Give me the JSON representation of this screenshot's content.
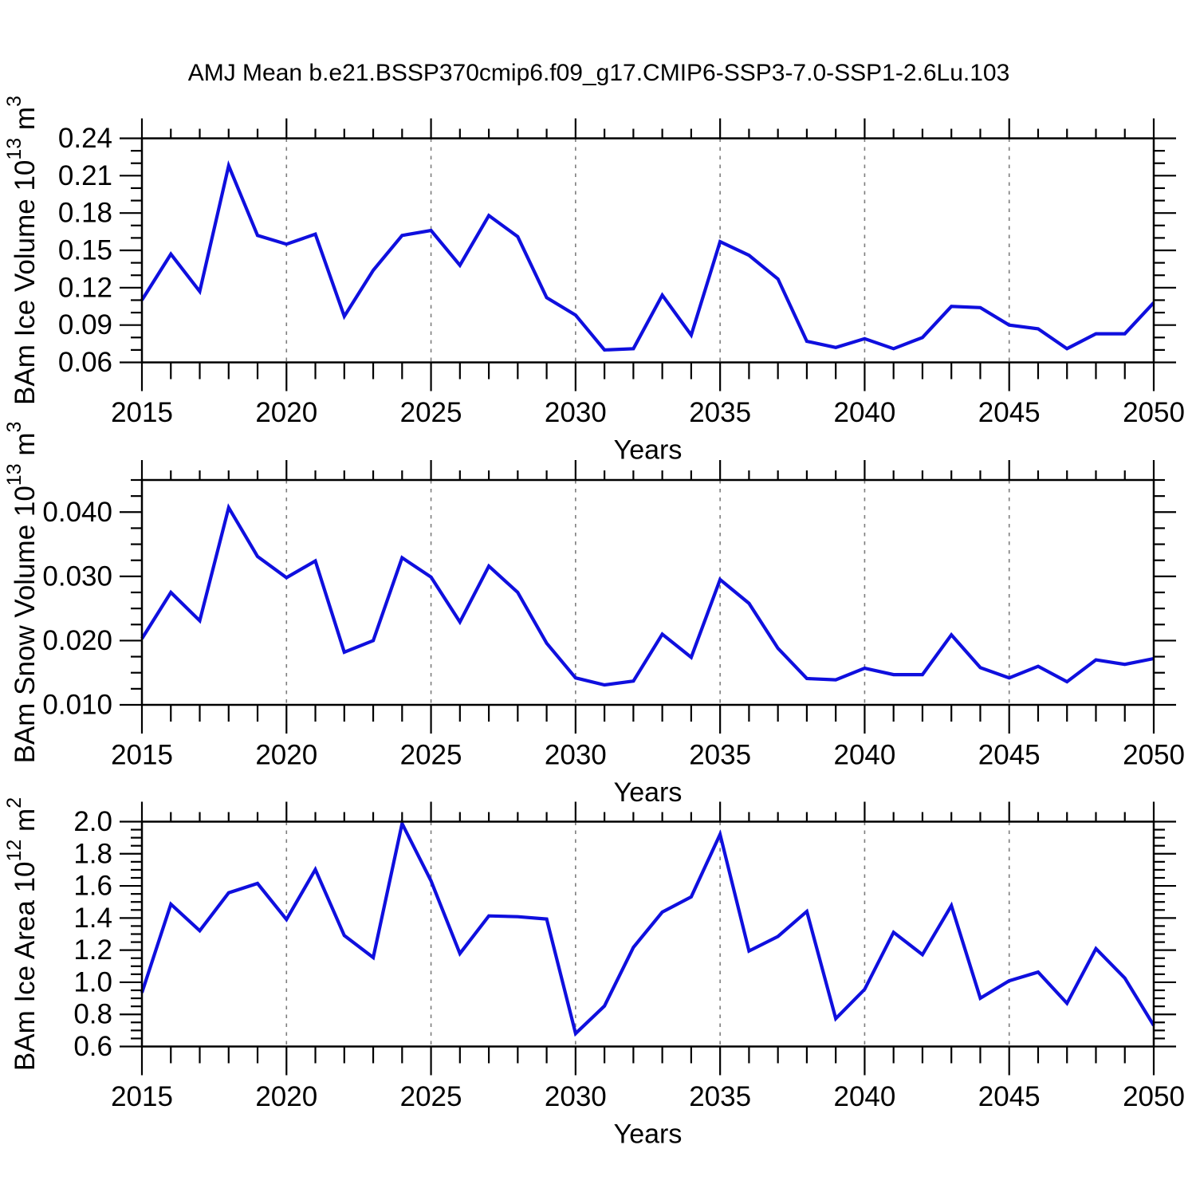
{
  "title": "AMJ Mean b.e21.BSSP370cmip6.f09_g17.CMIP6-SSP3-7.0-SSP1-2.6Lu.103",
  "colors": {
    "series_line": "#0F0FDE",
    "frame": "#000000",
    "gridline": "#7d7d7d",
    "text": "#000000",
    "background": "#ffffff"
  },
  "x_axis": {
    "label": "Years",
    "min": 2015,
    "max": 2050,
    "tick_step_major": 5,
    "tick_step_minor": 1,
    "major_tick_labels": [
      "2015",
      "2020",
      "2025",
      "2030",
      "2035",
      "2040",
      "2045",
      "2050"
    ],
    "gridline_years": [
      2020,
      2025,
      2030,
      2035,
      2040,
      2045
    ]
  },
  "chart_data": [
    {
      "type": "line",
      "name": "ice-volume",
      "ylabel_plain": "BAm Ice Volume 10^13 m^3",
      "ylabel_rich": [
        {
          "t": "BAm Ice Volume 10"
        },
        {
          "t": "13",
          "sup": true
        },
        {
          "t": " m"
        },
        {
          "t": "3",
          "sup": true
        }
      ],
      "xlabel": "Years",
      "y_min": 0.06,
      "y_max": 0.24,
      "y_tick_major": 0.03,
      "y_tick_minor": 0.01,
      "y_tick_decimals": 2,
      "y_tick_labels": [
        "0.06",
        "0.09",
        "0.12",
        "0.15",
        "0.18",
        "0.21",
        "0.24"
      ],
      "x": [
        2015,
        2016,
        2017,
        2018,
        2019,
        2020,
        2021,
        2022,
        2023,
        2024,
        2025,
        2026,
        2027,
        2028,
        2029,
        2030,
        2031,
        2032,
        2033,
        2034,
        2035,
        2036,
        2037,
        2038,
        2039,
        2040,
        2041,
        2042,
        2043,
        2044,
        2045,
        2046,
        2047,
        2048,
        2049,
        2050
      ],
      "values": [
        0.11,
        0.147,
        0.117,
        0.218,
        0.162,
        0.155,
        0.163,
        0.097,
        0.134,
        0.162,
        0.166,
        0.138,
        0.178,
        0.161,
        0.112,
        0.098,
        0.07,
        0.071,
        0.114,
        0.082,
        0.157,
        0.146,
        0.127,
        0.077,
        0.072,
        0.079,
        0.071,
        0.08,
        0.105,
        0.104,
        0.09,
        0.087,
        0.071,
        0.083,
        0.083,
        0.108
      ]
    },
    {
      "type": "line",
      "name": "snow-volume",
      "ylabel_plain": "BAm Snow Volume 10^13 m^3",
      "ylabel_rich": [
        {
          "t": "BAm Snow Volume 10"
        },
        {
          "t": "13",
          "sup": true
        },
        {
          "t": " m"
        },
        {
          "t": "3",
          "sup": true
        }
      ],
      "xlabel": "Years",
      "y_min": 0.01,
      "y_max": 0.045,
      "y_tick_major": 0.01,
      "y_tick_minor": 0.0025,
      "y_tick_decimals": 3,
      "y_tick_labels": [
        "0.010",
        "0.020",
        "0.030",
        "0.040"
      ],
      "x": [
        2015,
        2016,
        2017,
        2018,
        2019,
        2020,
        2021,
        2022,
        2023,
        2024,
        2025,
        2026,
        2027,
        2028,
        2029,
        2030,
        2031,
        2032,
        2033,
        2034,
        2035,
        2036,
        2037,
        2038,
        2039,
        2040,
        2041,
        2042,
        2043,
        2044,
        2045,
        2046,
        2047,
        2048,
        2049,
        2050
      ],
      "values": [
        0.0203,
        0.0275,
        0.0231,
        0.0407,
        0.0331,
        0.0298,
        0.0324,
        0.0182,
        0.02,
        0.0329,
        0.0299,
        0.0229,
        0.0316,
        0.0275,
        0.0196,
        0.0142,
        0.0131,
        0.0137,
        0.021,
        0.0174,
        0.0295,
        0.0258,
        0.0188,
        0.0141,
        0.0139,
        0.0157,
        0.0147,
        0.0147,
        0.0209,
        0.0158,
        0.0142,
        0.016,
        0.0136,
        0.017,
        0.0163,
        0.0172
      ]
    },
    {
      "type": "line",
      "name": "ice-area",
      "ylabel_plain": "BAm Ice Area 10^12 m^2",
      "ylabel_rich": [
        {
          "t": "BAm Ice Area 10"
        },
        {
          "t": "12",
          "sup": true
        },
        {
          "t": " m"
        },
        {
          "t": "2",
          "sup": true
        }
      ],
      "xlabel": "Years",
      "y_min": 0.6,
      "y_max": 2.0,
      "y_tick_major": 0.2,
      "y_tick_minor": 0.05,
      "y_tick_decimals": 1,
      "y_tick_labels": [
        "0.6",
        "0.8",
        "1.0",
        "1.2",
        "1.4",
        "1.6",
        "1.8",
        "2.0"
      ],
      "x": [
        2015,
        2016,
        2017,
        2018,
        2019,
        2020,
        2021,
        2022,
        2023,
        2024,
        2025,
        2026,
        2027,
        2028,
        2029,
        2030,
        2031,
        2032,
        2033,
        2034,
        2035,
        2036,
        2037,
        2038,
        2039,
        2040,
        2041,
        2042,
        2043,
        2044,
        2045,
        2046,
        2047,
        2048,
        2049,
        2050
      ],
      "values": [
        0.935,
        1.486,
        1.321,
        1.557,
        1.615,
        1.391,
        1.702,
        1.291,
        1.154,
        1.988,
        1.631,
        1.179,
        1.413,
        1.408,
        1.394,
        0.681,
        0.852,
        1.217,
        1.437,
        1.532,
        1.921,
        1.195,
        1.285,
        1.441,
        0.774,
        0.956,
        1.311,
        1.172,
        1.477,
        0.901,
        1.009,
        1.063,
        0.869,
        1.209,
        1.026,
        0.731
      ]
    }
  ]
}
